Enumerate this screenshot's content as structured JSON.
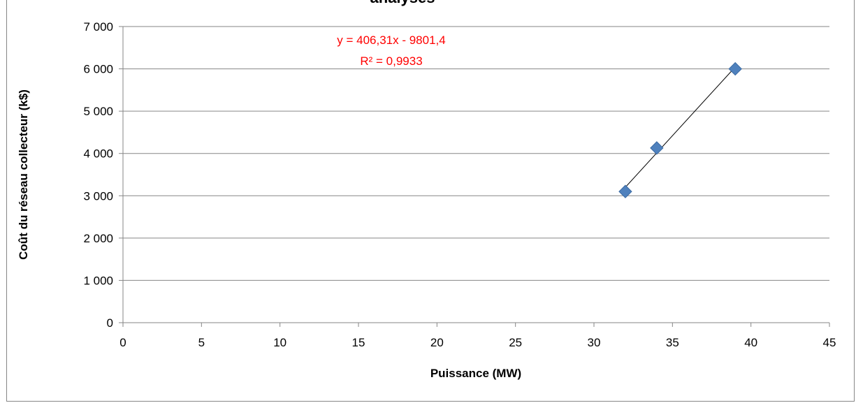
{
  "chart_data": {
    "type": "scatter",
    "title": "analyses",
    "xlabel": "Puissance (MW)",
    "ylabel": "Coût du réseau collecteur (k$)",
    "xlim": [
      0,
      45
    ],
    "ylim": [
      0,
      7000
    ],
    "x_ticks": [
      "0",
      "5",
      "10",
      "15",
      "20",
      "25",
      "30",
      "35",
      "40",
      "45"
    ],
    "y_ticks": [
      "0",
      "1 000",
      "2 000",
      "3 000",
      "4 000",
      "5 000",
      "6 000",
      "7 000"
    ],
    "grid": true,
    "legend": "none",
    "marker_color": "#4f81bd",
    "trendline_color": "#000000",
    "annotation_color": "#ff0000",
    "series": [
      {
        "points": [
          {
            "x": 32,
            "y": 3100
          },
          {
            "x": 34,
            "y": 4130
          },
          {
            "x": 39,
            "y": 6000
          }
        ]
      }
    ],
    "trendline": {
      "slope": 406.31,
      "intercept": -9801.4,
      "x_range": [
        32,
        39
      ],
      "equation": "y = 406,31x - 9801,4",
      "r_squared": "R² = 0,9933"
    }
  }
}
